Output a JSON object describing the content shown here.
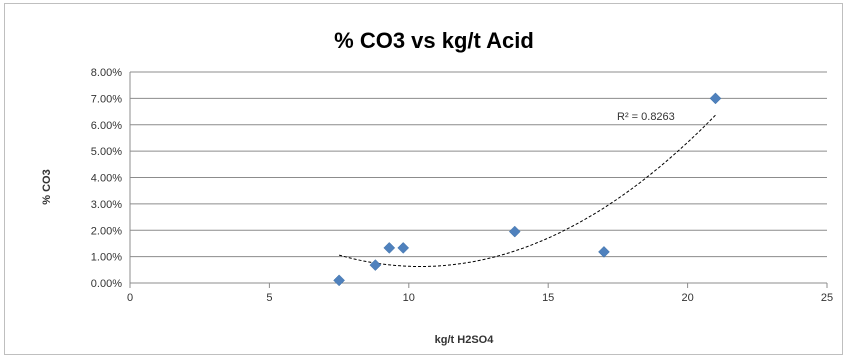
{
  "chart_data": {
    "type": "scatter",
    "title": "% CO3 vs kg/t Acid",
    "xlabel": "kg/t H2SO4",
    "ylabel": "% CO3",
    "xlim": [
      0,
      25
    ],
    "ylim": [
      0,
      0.08
    ],
    "x_ticks": [
      0,
      5,
      10,
      15,
      20,
      25
    ],
    "x_tick_labels": [
      "0",
      "5",
      "10",
      "15",
      "20",
      "25"
    ],
    "y_ticks": [
      0,
      0.01,
      0.02,
      0.03,
      0.04,
      0.05,
      0.06,
      0.07,
      0.08
    ],
    "y_tick_labels": [
      "0.00%",
      "1.00%",
      "2.00%",
      "3.00%",
      "4.00%",
      "5.00%",
      "6.00%",
      "7.00%",
      "8.00%"
    ],
    "grid": "horizontal",
    "legend": "none",
    "marker_color": "#4f81bd",
    "trendline": {
      "type": "polynomial",
      "style": "dashed",
      "color": "#000000",
      "annotation": "R² = 0.8263"
    },
    "series": [
      {
        "points": [
          {
            "x": 7.5,
            "y": 0.001
          },
          {
            "x": 8.8,
            "y": 0.0068
          },
          {
            "x": 9.3,
            "y": 0.0133
          },
          {
            "x": 9.8,
            "y": 0.0133
          },
          {
            "x": 13.8,
            "y": 0.0195
          },
          {
            "x": 17.0,
            "y": 0.0118
          },
          {
            "x": 21.0,
            "y": 0.07
          }
        ]
      }
    ]
  }
}
